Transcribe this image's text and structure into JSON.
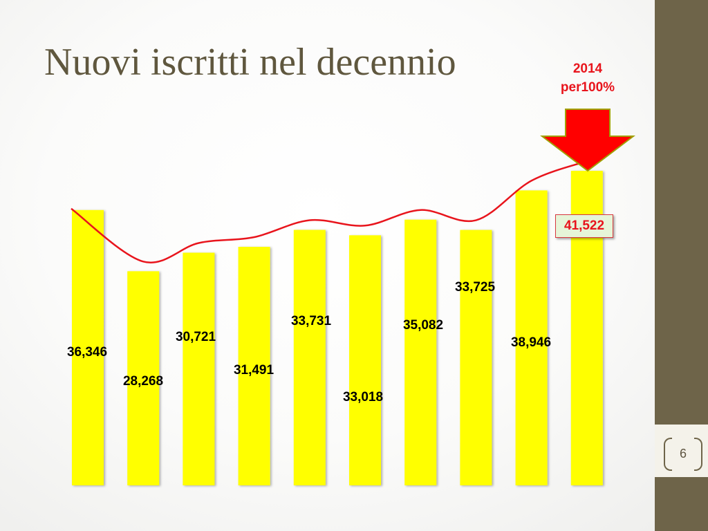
{
  "slide": {
    "title": "Nuovi iscritti nel decennio",
    "page_number": "6"
  },
  "callout": {
    "line1": "2014",
    "line2": "per100%"
  },
  "colors": {
    "bar": "#ffff00",
    "trend_line": "#e8141c",
    "arrow": "#ff0000",
    "sidebar": "#6e6449",
    "title": "#5f573e"
  },
  "chart_data": {
    "type": "bar",
    "title": "Nuovi iscritti nel decennio",
    "categories": [
      "",
      "",
      "",
      "",
      "",
      "",
      "",
      "",
      "",
      ""
    ],
    "values": [
      36346,
      28268,
      30721,
      31491,
      33731,
      33018,
      35082,
      33725,
      38946,
      41522
    ],
    "data_labels": [
      "36,346",
      "28,268",
      "30,721",
      "31,491",
      "33,731",
      "33,018",
      "35,082",
      "33,725",
      "38,946",
      "41,522"
    ],
    "highlighted_index": 9,
    "ylim": [
      0,
      44000
    ],
    "grid": false,
    "legend": "none",
    "trend_line": "smoothed red line over bar tops"
  }
}
